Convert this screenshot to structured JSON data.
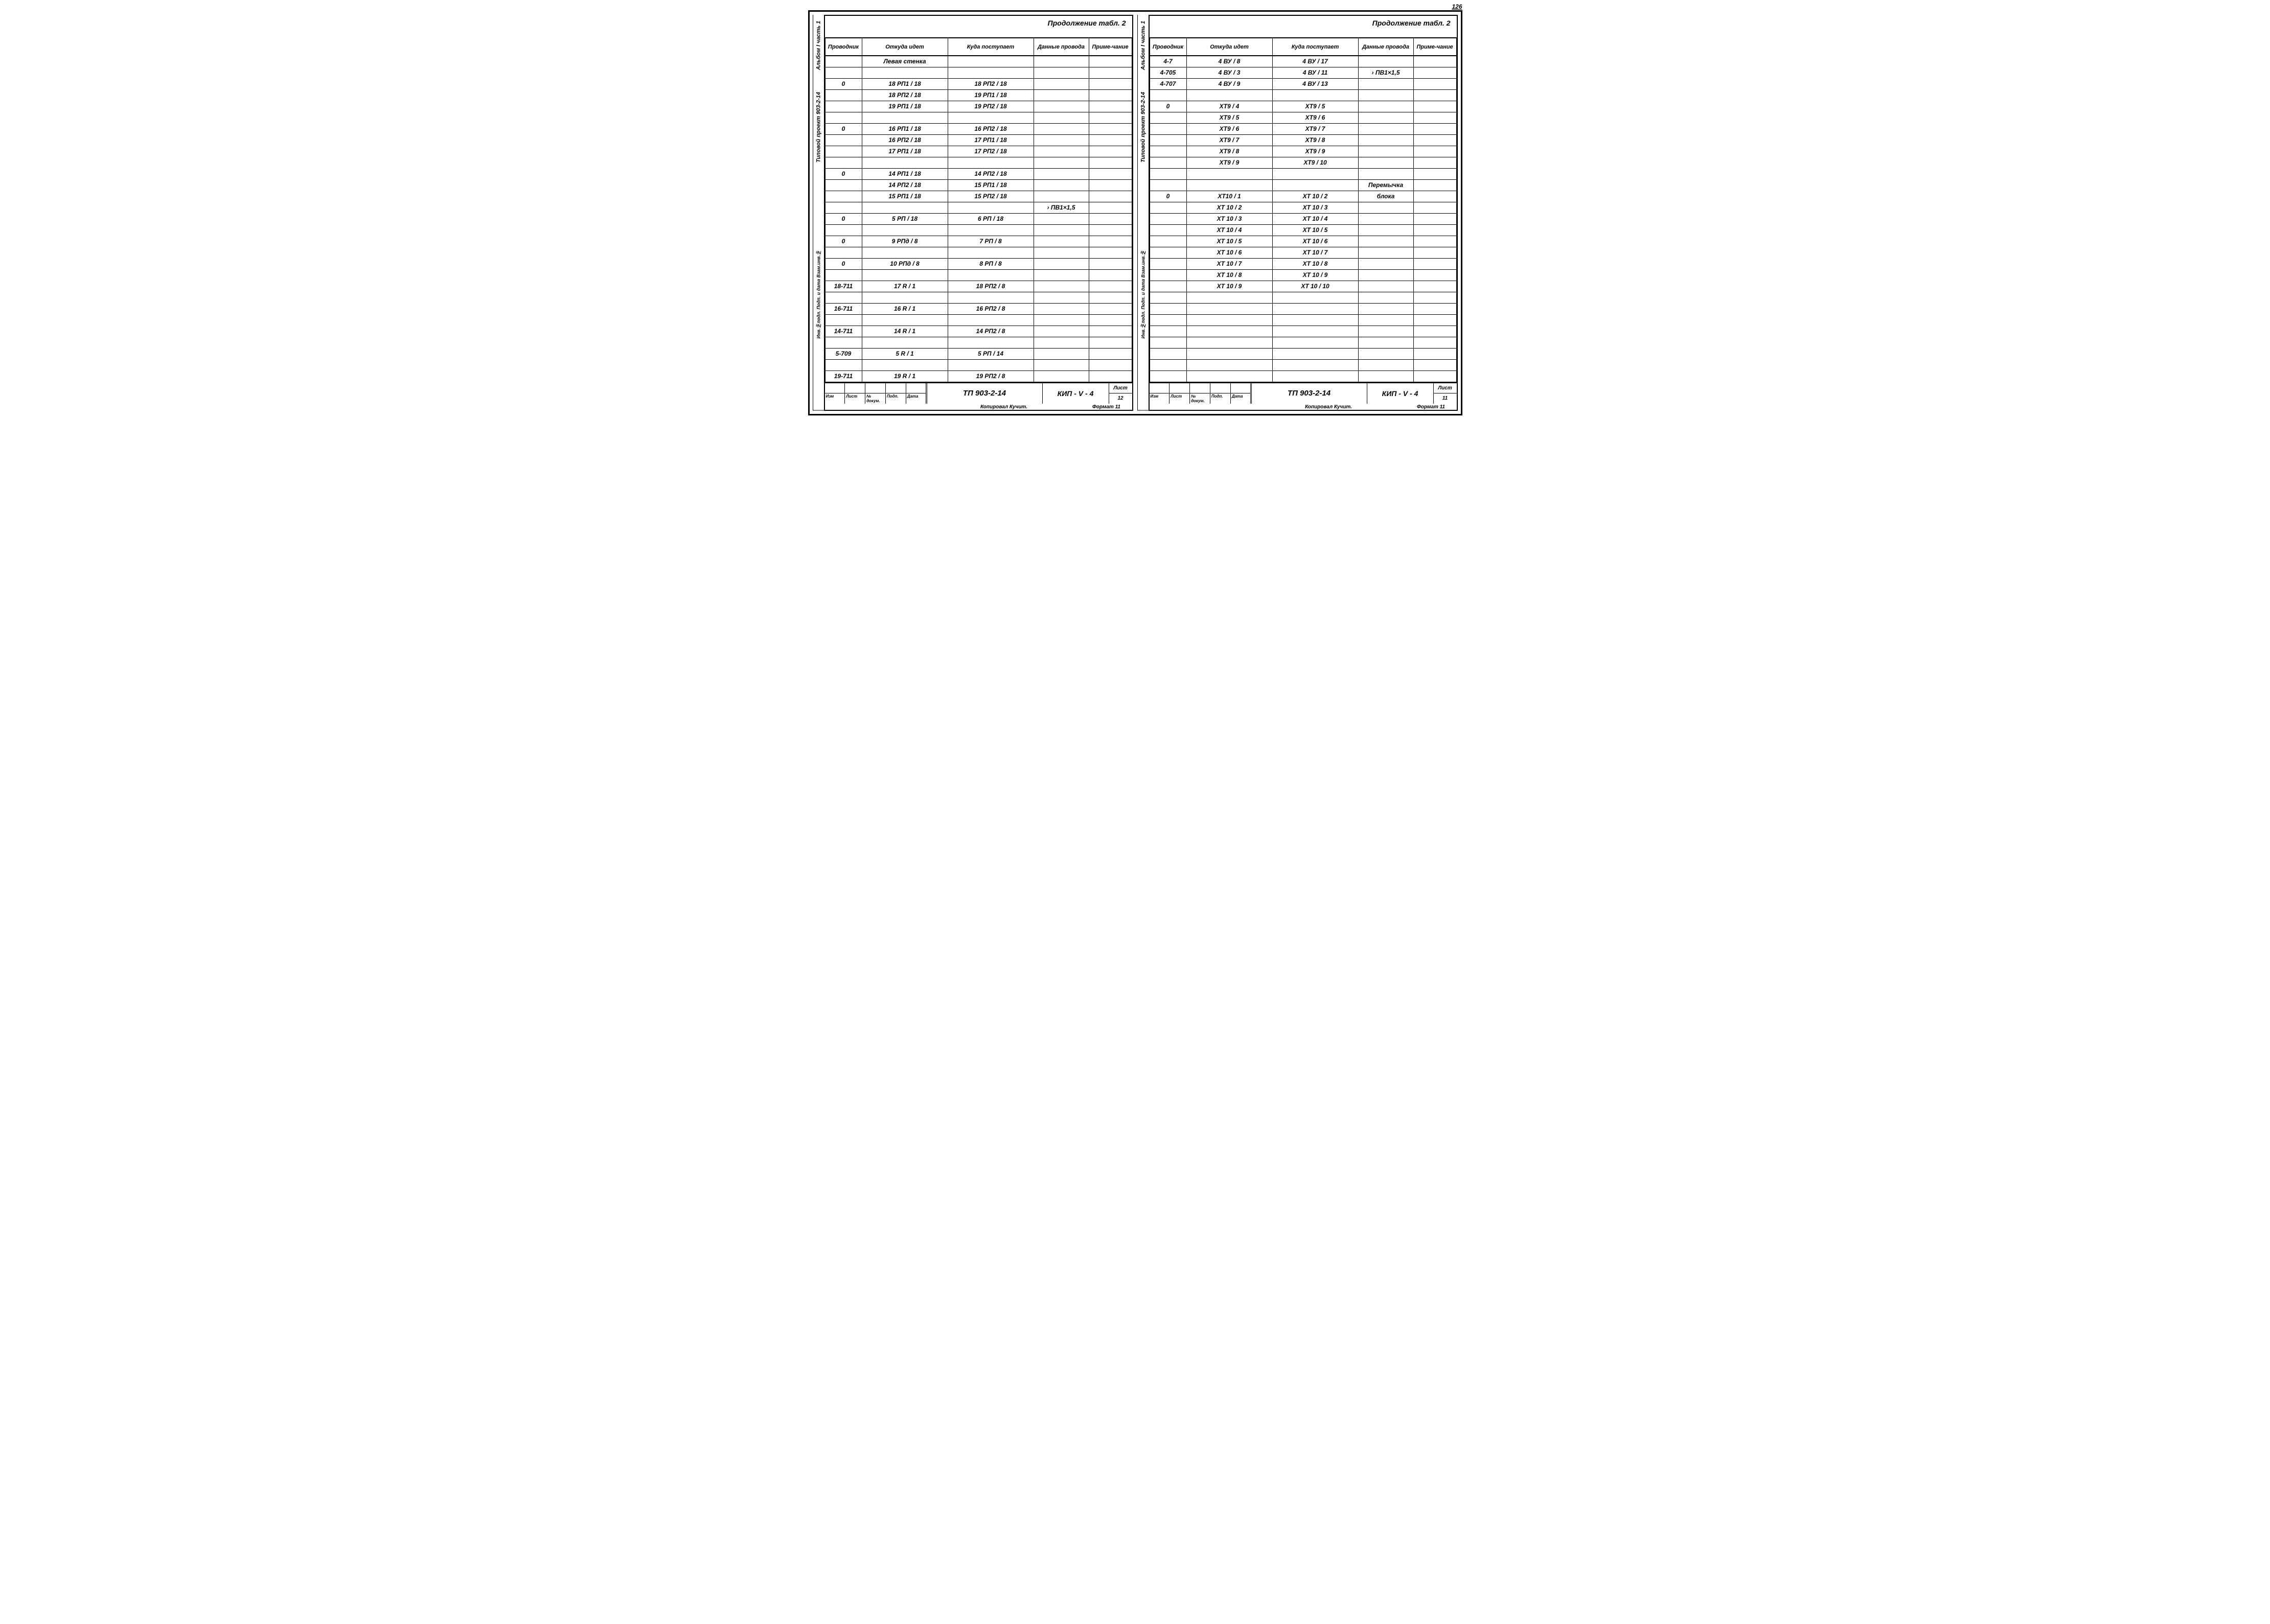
{
  "page_number_top_right": "126",
  "continuation_title": "Продолжение табл. 2",
  "headers": {
    "c1": "Проводник",
    "c2": "Откуда идет",
    "c3": "Куда поступает",
    "c4": "Данные провода",
    "c5": "Приме-чание"
  },
  "side_labels": {
    "upper": "Альбом I   часть 1",
    "mid": "Типовой проект  903-2-14",
    "lower": "Инв.№подл.  Подп. и дата  Взам.инв.№"
  },
  "title_block": {
    "small_headers": [
      "Изм",
      "Лист",
      "№ докум.",
      "Подп.",
      "Дата"
    ],
    "project": "ТП 903-2-14",
    "doc_code": "КИП - V - 4",
    "sheet_label": "Лист"
  },
  "footer": {
    "mid": "Копировал Кучит.",
    "right": "Формат 11"
  },
  "left": {
    "sheet_no": "12",
    "rows": [
      {
        "c1": "",
        "c2": "Левая   стенка",
        "c3": "",
        "c4": "",
        "c5": ""
      },
      {
        "c1": "",
        "c2": "",
        "c3": "",
        "c4": "",
        "c5": ""
      },
      {
        "c1": "0",
        "c2": "18 РП1 / 18",
        "c3": "18 РП2 / 18",
        "c4": "",
        "c5": ""
      },
      {
        "c1": "",
        "c2": "18 РП2 / 18",
        "c3": "19 РП1 / 18",
        "c4": "",
        "c5": ""
      },
      {
        "c1": "",
        "c2": "19 РП1 / 18",
        "c3": "19 РП2 / 18",
        "c4": "",
        "c5": ""
      },
      {
        "c1": "",
        "c2": "",
        "c3": "",
        "c4": "",
        "c5": ""
      },
      {
        "c1": "0",
        "c2": "16 РП1 / 18",
        "c3": "16 РП2 / 18",
        "c4": "",
        "c5": ""
      },
      {
        "c1": "",
        "c2": "16 РП2 / 18",
        "c3": "17 РП1 / 18",
        "c4": "",
        "c5": ""
      },
      {
        "c1": "",
        "c2": "17 РП1 / 18",
        "c3": "17 РП2 / 18",
        "c4": "",
        "c5": ""
      },
      {
        "c1": "",
        "c2": "",
        "c3": "",
        "c4": "",
        "c5": ""
      },
      {
        "c1": "0",
        "c2": "14 РП1 / 18",
        "c3": "14 РП2 / 18",
        "c4": "",
        "c5": ""
      },
      {
        "c1": "",
        "c2": "14 РП2 / 18",
        "c3": "15 РП1 / 18",
        "c4": "",
        "c5": ""
      },
      {
        "c1": "",
        "c2": "15 РП1 / 18",
        "c3": "15 РП2 / 18",
        "c4": "",
        "c5": ""
      },
      {
        "c1": "",
        "c2": "",
        "c3": "",
        "c4": "› ПВ1×1,5",
        "c5": ""
      },
      {
        "c1": "0",
        "c2": "5 РП / 18",
        "c3": "6 РП / 18",
        "c4": "",
        "c5": ""
      },
      {
        "c1": "",
        "c2": "",
        "c3": "",
        "c4": "",
        "c5": ""
      },
      {
        "c1": "0",
        "c2": "9 РПд / 8",
        "c3": "7 РП / 8",
        "c4": "",
        "c5": ""
      },
      {
        "c1": "",
        "c2": "",
        "c3": "",
        "c4": "",
        "c5": ""
      },
      {
        "c1": "0",
        "c2": "10 РПд / 8",
        "c3": "8 РП / 8",
        "c4": "",
        "c5": ""
      },
      {
        "c1": "",
        "c2": "",
        "c3": "",
        "c4": "",
        "c5": ""
      },
      {
        "c1": "18-711",
        "c2": "17 R / 1",
        "c3": "18 РП2 / 8",
        "c4": "",
        "c5": ""
      },
      {
        "c1": "",
        "c2": "",
        "c3": "",
        "c4": "",
        "c5": ""
      },
      {
        "c1": "16-711",
        "c2": "16 R / 1",
        "c3": "16 РП2 / 8",
        "c4": "",
        "c5": ""
      },
      {
        "c1": "",
        "c2": "",
        "c3": "",
        "c4": "",
        "c5": ""
      },
      {
        "c1": "14-711",
        "c2": "14 R / 1",
        "c3": "14 РП2 / 8",
        "c4": "",
        "c5": ""
      },
      {
        "c1": "",
        "c2": "",
        "c3": "",
        "c4": "",
        "c5": ""
      },
      {
        "c1": "5-709",
        "c2": "5 R / 1",
        "c3": "5 РП / 14",
        "c4": "",
        "c5": ""
      },
      {
        "c1": "",
        "c2": "",
        "c3": "",
        "c4": "",
        "c5": ""
      },
      {
        "c1": "19-711",
        "c2": "19 R / 1",
        "c3": "19 РП2 / 8",
        "c4": "",
        "c5": ""
      }
    ]
  },
  "right": {
    "sheet_no": "11",
    "rows": [
      {
        "c1": "4-7",
        "c2": "4 ВУ / 8",
        "c3": "4 ВУ / 17",
        "c4": "",
        "c5": ""
      },
      {
        "c1": "4-705",
        "c2": "4 ВУ / 3",
        "c3": "4 ВУ / 11",
        "c4": "› ПВ1×1,5",
        "c5": ""
      },
      {
        "c1": "4-707",
        "c2": "4 ВУ / 9",
        "c3": "4 ВУ / 13",
        "c4": "",
        "c5": ""
      },
      {
        "c1": "",
        "c2": "",
        "c3": "",
        "c4": "",
        "c5": ""
      },
      {
        "c1": "0",
        "c2": "XT9 / 4",
        "c3": "XT9 / 5",
        "c4": "",
        "c5": ""
      },
      {
        "c1": "",
        "c2": "XT9 / 5",
        "c3": "XT9 / 6",
        "c4": "",
        "c5": ""
      },
      {
        "c1": "",
        "c2": "XT9 / 6",
        "c3": "XT9 / 7",
        "c4": "",
        "c5": ""
      },
      {
        "c1": "",
        "c2": "XT9 / 7",
        "c3": "XT9 / 8",
        "c4": "",
        "c5": ""
      },
      {
        "c1": "",
        "c2": "XT9 / 8",
        "c3": "XT9 / 9",
        "c4": "",
        "c5": ""
      },
      {
        "c1": "",
        "c2": "XT9 / 9",
        "c3": "XT9 / 10",
        "c4": "",
        "c5": ""
      },
      {
        "c1": "",
        "c2": "",
        "c3": "",
        "c4": "",
        "c5": ""
      },
      {
        "c1": "",
        "c2": "",
        "c3": "",
        "c4": "Перемычка",
        "c5": ""
      },
      {
        "c1": "0",
        "c2": "XT10 / 1",
        "c3": "XT 10 / 2",
        "c4": "блока",
        "c5": ""
      },
      {
        "c1": "",
        "c2": "XT 10 / 2",
        "c3": "XT 10 / 3",
        "c4": "",
        "c5": ""
      },
      {
        "c1": "",
        "c2": "XT 10 / 3",
        "c3": "XT 10 / 4",
        "c4": "",
        "c5": ""
      },
      {
        "c1": "",
        "c2": "XT 10 / 4",
        "c3": "XT 10 / 5",
        "c4": "",
        "c5": ""
      },
      {
        "c1": "",
        "c2": "XT 10 / 5",
        "c3": "XT 10 / 6",
        "c4": "",
        "c5": ""
      },
      {
        "c1": "",
        "c2": "XT 10 / 6",
        "c3": "XT 10 / 7",
        "c4": "",
        "c5": ""
      },
      {
        "c1": "",
        "c2": "XT 10 / 7",
        "c3": "XT 10 / 8",
        "c4": "",
        "c5": ""
      },
      {
        "c1": "",
        "c2": "XT 10 / 8",
        "c3": "XT 10 / 9",
        "c4": "",
        "c5": ""
      },
      {
        "c1": "",
        "c2": "XT 10 / 9",
        "c3": "XT 10 / 10",
        "c4": "",
        "c5": ""
      },
      {
        "c1": "",
        "c2": "",
        "c3": "",
        "c4": "",
        "c5": ""
      },
      {
        "c1": "",
        "c2": "",
        "c3": "",
        "c4": "",
        "c5": ""
      },
      {
        "c1": "",
        "c2": "",
        "c3": "",
        "c4": "",
        "c5": ""
      },
      {
        "c1": "",
        "c2": "",
        "c3": "",
        "c4": "",
        "c5": ""
      },
      {
        "c1": "",
        "c2": "",
        "c3": "",
        "c4": "",
        "c5": ""
      },
      {
        "c1": "",
        "c2": "",
        "c3": "",
        "c4": "",
        "c5": ""
      },
      {
        "c1": "",
        "c2": "",
        "c3": "",
        "c4": "",
        "c5": ""
      },
      {
        "c1": "",
        "c2": "",
        "c3": "",
        "c4": "",
        "c5": ""
      }
    ]
  }
}
